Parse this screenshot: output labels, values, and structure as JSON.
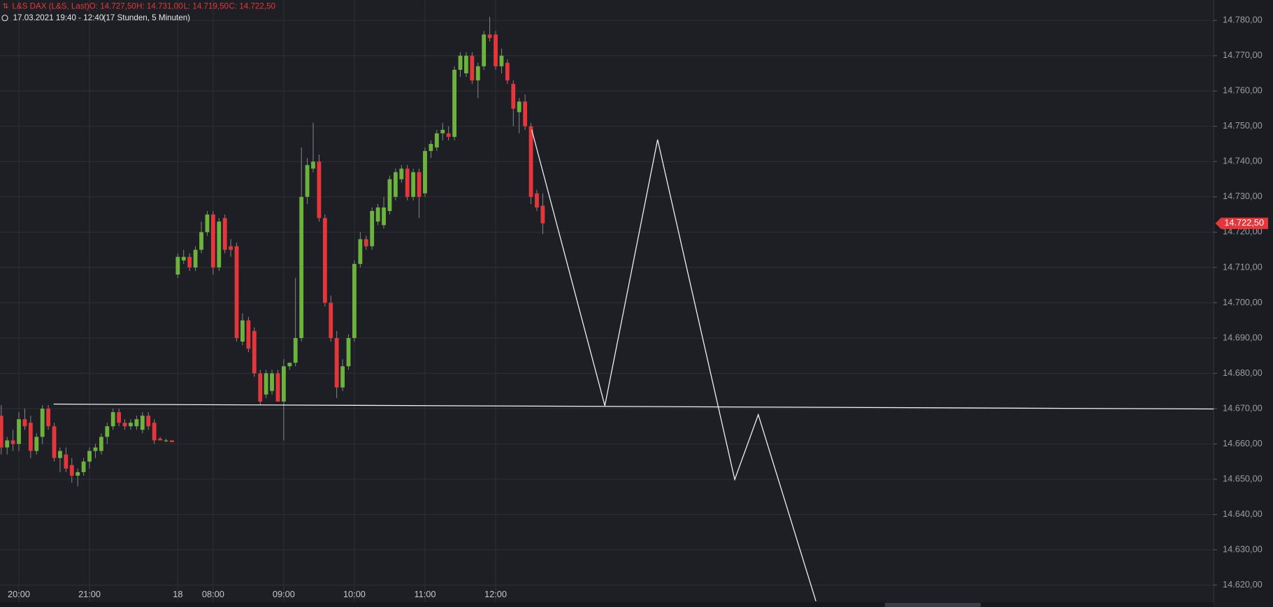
{
  "chart_data": {
    "type": "candlestick",
    "header": {
      "instrument": "L&S DAX (L&S, Last)",
      "ohlc": [
        "O: 14.727,50",
        "H: 14.731,00",
        "L: 14.719,50",
        "C: 14.722,50"
      ],
      "range": "17.03.2021 19:40 - 12:40",
      "duration": "(17 Stunden, 5 Minuten)"
    },
    "categories": [
      null,
      null,
      null,
      "20:00",
      null,
      null,
      null,
      null,
      null,
      null,
      null,
      null,
      null,
      null,
      null,
      "21:00",
      null,
      null,
      null,
      null,
      null,
      null,
      null,
      null,
      null,
      null,
      null,
      null,
      null,
      null,
      "18",
      null,
      null,
      null,
      null,
      null,
      "08:00",
      null,
      null,
      null,
      null,
      null,
      null,
      null,
      null,
      null,
      null,
      null,
      "09:00",
      null,
      null,
      null,
      null,
      null,
      null,
      null,
      null,
      null,
      null,
      null,
      "10:00",
      null,
      null,
      null,
      null,
      null,
      null,
      null,
      null,
      null,
      null,
      null,
      "11:00",
      null,
      null,
      null,
      null,
      null,
      null,
      null,
      null,
      null,
      null,
      null,
      "12:00",
      null,
      null,
      null,
      null,
      null,
      null,
      null,
      null
    ],
    "open": [
      14668,
      14659,
      14661,
      14660,
      14667,
      14666,
      14658,
      14662,
      14670,
      14665,
      14656,
      14657,
      14654,
      14651,
      14652,
      14655,
      14658,
      14658,
      14662,
      14665,
      14669,
      14666,
      14665,
      14665,
      14664,
      14668,
      14666,
      14661.5,
      14661,
      14661,
      14708,
      14712,
      14713,
      14710,
      14715,
      14720,
      14725,
      14710,
      14724,
      14716,
      14716,
      14689,
      14695,
      14692,
      14680,
      14674,
      14675,
      14680,
      14672,
      14682,
      14683,
      14690,
      14730,
      14738,
      14740,
      14724,
      14700,
      14690,
      14676,
      14682,
      14690,
      14711,
      14718,
      14716,
      14723,
      14722,
      14726,
      14730,
      14735,
      14738,
      14730,
      14737,
      14731,
      14743,
      14744,
      14748,
      14748,
      14747,
      14766,
      14765,
      14770,
      14763,
      14767,
      14776,
      14776,
      14767,
      14768,
      14762,
      14754,
      14757,
      14750,
      14731,
      14727.5
    ],
    "high": [
      14671,
      14662,
      14664,
      14669,
      14670,
      14668,
      14663,
      14671,
      14671,
      14666,
      14659,
      14659,
      14656,
      14653,
      14656,
      14659,
      14660,
      14663,
      14666,
      14670,
      14670,
      14667,
      14667,
      14668,
      14669,
      14669,
      14667,
      14662,
      14661.5,
      14661,
      14714,
      14715,
      14714,
      14716,
      14723,
      14726,
      14726,
      14724,
      14725,
      14718,
      14717,
      14697,
      14696,
      14693,
      14681,
      14681,
      14681,
      14681,
      14684,
      14683,
      14707,
      14744,
      14741,
      14751,
      14742,
      14725,
      14702,
      14692,
      14684,
      14691,
      14712,
      14720,
      14719,
      14727,
      14728,
      14730,
      14736,
      14738,
      14739,
      14739,
      14738,
      14738,
      14744,
      14746,
      14749,
      14751,
      14750,
      14767,
      14771,
      14771,
      14771,
      14768,
      14777,
      14781,
      14777,
      14772,
      14769,
      14763,
      14758,
      14759,
      14751,
      14732,
      14731
    ],
    "low": [
      14657,
      14657,
      14658,
      14658,
      14664,
      14656,
      14657,
      14660,
      14664,
      14655,
      14652,
      14652,
      14649,
      14648,
      14651,
      14653,
      14656,
      14657,
      14660,
      14664,
      14665,
      14664,
      14664,
      14664,
      14663,
      14664,
      14660,
      14661,
      14660.5,
      14660.5,
      14707,
      14711,
      14709,
      14709,
      14714,
      14719,
      14708,
      14709,
      14714,
      14713,
      14689,
      14688,
      14686,
      14679,
      14671,
      14673,
      14674,
      14672,
      14661,
      14681,
      14682,
      14689,
      14728,
      14737,
      14723,
      14699,
      14689,
      14673,
      14675,
      14681,
      14689,
      14710,
      14715,
      14715,
      14722,
      14721,
      14725,
      14729,
      14734,
      14729,
      14729,
      14724,
      14730,
      14741,
      14743,
      14746,
      14746,
      14746,
      14764,
      14764,
      14762,
      14758,
      14766,
      14774,
      14766,
      14765,
      14762,
      14750,
      14748,
      14749,
      14728,
      14726,
      14719.5
    ],
    "close": [
      14659,
      14661,
      14660,
      14667,
      14665,
      14658,
      14662,
      14670,
      14665,
      14656,
      14658,
      14653,
      14651,
      14652,
      14655,
      14658,
      14659,
      14662,
      14665,
      14669,
      14666,
      14665,
      14666,
      14667,
      14668,
      14665,
      14661,
      14661,
      14661,
      14660.5,
      14713,
      14713,
      14710,
      14715,
      14720,
      14725,
      14710,
      14723,
      14715,
      14715,
      14690,
      14695,
      14687,
      14680,
      14672,
      14680,
      14680,
      14672,
      14682,
      14683,
      14690,
      14730,
      14739,
      14740,
      14724,
      14700,
      14690,
      14676,
      14682,
      14690,
      14711,
      14718,
      14716,
      14726,
      14727,
      14727,
      14735,
      14737,
      14738,
      14730,
      14737,
      14730,
      14743,
      14745,
      14748,
      14749,
      14747,
      14766,
      14770,
      14770,
      14763,
      14767,
      14776,
      14775,
      14767,
      14770,
      14763,
      14755,
      14757,
      14750,
      14730,
      14727,
      14722.5
    ],
    "up_color": "#6cb33e",
    "down_color": "#e5373b",
    "ylim": [
      14615.2,
      14785.75
    ],
    "yticks": [
      {
        "value": 14620,
        "label": "14.620,00"
      },
      {
        "value": 14630,
        "label": "14.630,00"
      },
      {
        "value": 14640,
        "label": "14.640,00"
      },
      {
        "value": 14650,
        "label": "14.650,00"
      },
      {
        "value": 14660,
        "label": "14.660,00"
      },
      {
        "value": 14670,
        "label": "14.670,00"
      },
      {
        "value": 14680,
        "label": "14.680,00"
      },
      {
        "value": 14690,
        "label": "14.690,00"
      },
      {
        "value": 14700,
        "label": "14.700,00"
      },
      {
        "value": 14710,
        "label": "14.710,00"
      },
      {
        "value": 14720,
        "label": "14.720,00"
      },
      {
        "value": 14730,
        "label": "14.730,00"
      },
      {
        "value": 14740,
        "label": "14.740,00"
      },
      {
        "value": 14750,
        "label": "14.750,00"
      },
      {
        "value": 14760,
        "label": "14.760,00"
      },
      {
        "value": 14770,
        "label": "14.770,00"
      },
      {
        "value": 14780,
        "label": "14.780,00"
      }
    ],
    "last_price": {
      "value": 14722.5,
      "label": "14.722,50"
    },
    "grid": true
  }
}
